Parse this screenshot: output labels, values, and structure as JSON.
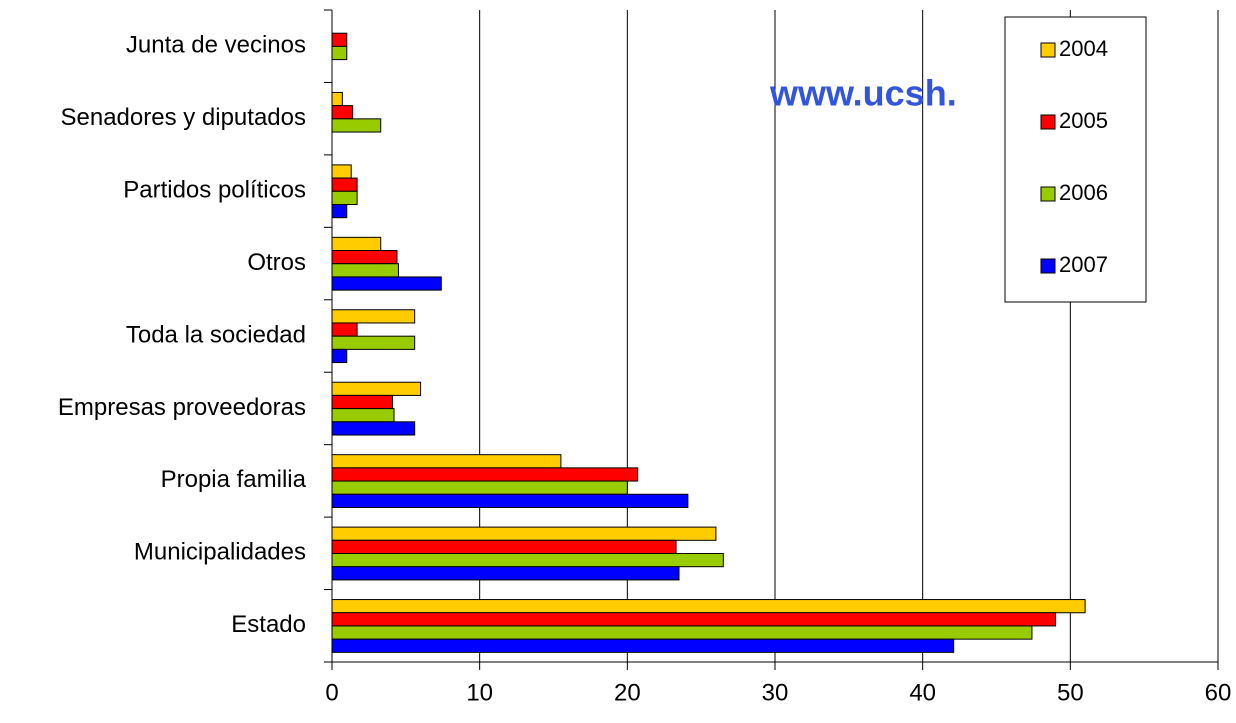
{
  "chart_data": {
    "type": "bar",
    "orientation": "horizontal",
    "annotation": "www.ucsh.",
    "categories": [
      "Junta de vecinos",
      "Senadores y diputados",
      "Partidos políticos",
      "Otros",
      "Toda la sociedad",
      "Empresas proveedoras",
      "Propia familia",
      "Municipalidades",
      "Estado"
    ],
    "series": [
      {
        "name": "2004",
        "color": "#ffcc00",
        "values": [
          null,
          0.7,
          1.3,
          3.3,
          5.6,
          6.0,
          15.5,
          26.0,
          51.0
        ]
      },
      {
        "name": "2005",
        "color": "#ff0000",
        "values": [
          1.0,
          1.4,
          1.7,
          4.4,
          1.7,
          4.1,
          20.7,
          23.3,
          49.0
        ]
      },
      {
        "name": "2006",
        "color": "#99cc00",
        "values": [
          1.0,
          3.3,
          1.7,
          4.5,
          5.6,
          4.2,
          20.0,
          26.5,
          47.4
        ]
      },
      {
        "name": "2007",
        "color": "#0000ff",
        "values": [
          null,
          null,
          1.0,
          7.4,
          1.0,
          5.6,
          24.1,
          23.5,
          42.1
        ]
      }
    ],
    "xlim": [
      0,
      60
    ],
    "xticks": [
      0,
      10,
      20,
      30,
      40,
      50,
      60
    ],
    "grid": true,
    "legend": "upper right"
  }
}
